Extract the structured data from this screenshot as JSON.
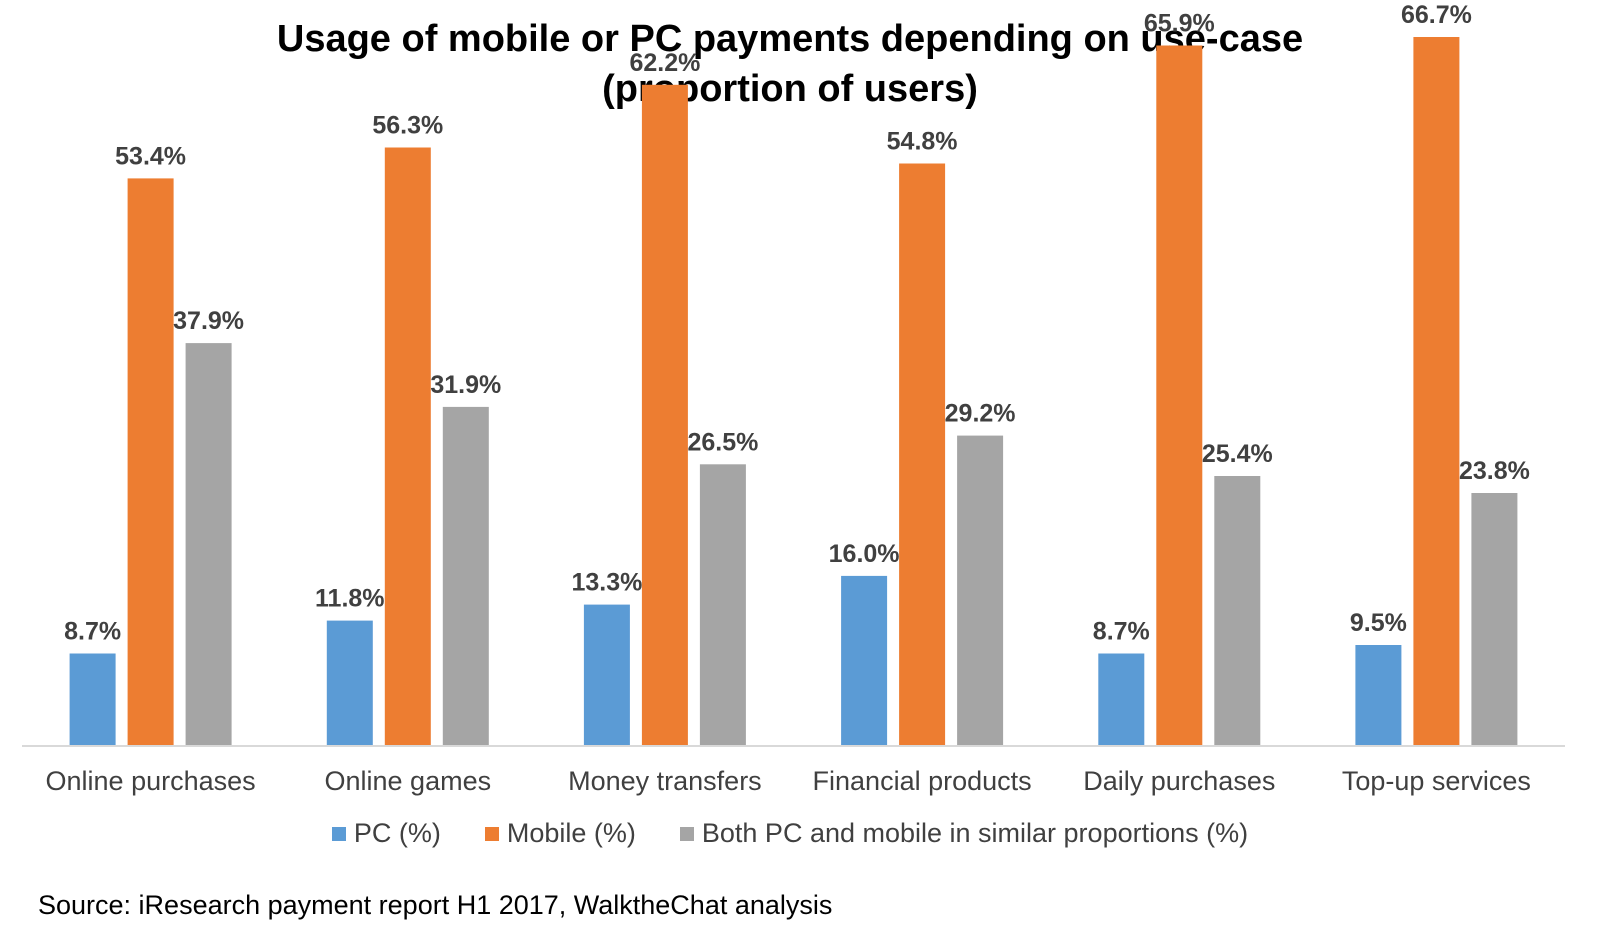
{
  "chart_data": {
    "type": "bar",
    "title": "Usage of mobile or PC payments depending on use-case",
    "subtitle": "(proportion of users)",
    "categories": [
      "Online purchases",
      "Online games",
      "Money transfers",
      "Financial products",
      "Daily purchases",
      "Top-up services"
    ],
    "series": [
      {
        "name": "PC (%)",
        "color": "#5B9BD5",
        "values": [
          8.7,
          11.8,
          13.3,
          16.0,
          8.7,
          9.5
        ],
        "labels": [
          "8.7%",
          "11.8%",
          "13.3%",
          "16.0%",
          "8.7%",
          "9.5%"
        ]
      },
      {
        "name": "Mobile (%)",
        "color": "#ED7D31",
        "values": [
          53.4,
          56.3,
          62.2,
          54.8,
          65.9,
          66.7
        ],
        "labels": [
          "53.4%",
          "56.3%",
          "62.2%",
          "54.8%",
          "65.9%",
          "66.7%"
        ]
      },
      {
        "name": "Both PC and mobile in similar proportions (%)",
        "color": "#A5A5A5",
        "values": [
          37.9,
          31.9,
          26.5,
          29.2,
          25.4,
          23.8
        ],
        "labels": [
          "37.9%",
          "31.9%",
          "26.5%",
          "29.2%",
          "25.4%",
          "23.8%"
        ]
      }
    ],
    "xlabel": "",
    "ylabel": "",
    "ylim": [
      0,
      75
    ],
    "grid": false,
    "legend": "bottom",
    "source": "Source: iResearch payment report H1 2017, WalktheChat analysis"
  }
}
